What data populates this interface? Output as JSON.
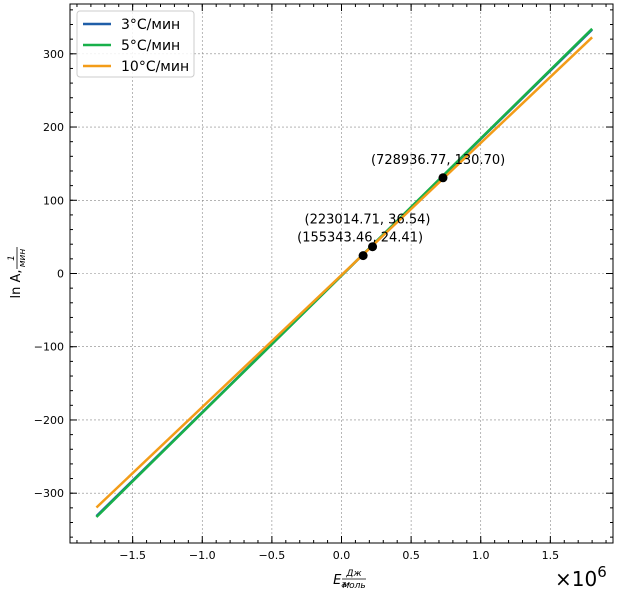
{
  "chart_data": {
    "type": "line",
    "title": "",
    "x_offset_text": "×10",
    "x_offset_exponent": "6",
    "xlabel": {
      "symbol": "E",
      "subscript": "a",
      "separator": ",",
      "unit_num": "Дж",
      "unit_den": "моль"
    },
    "ylabel": {
      "symbol": "ln A",
      "separator": ",",
      "unit_num": "1",
      "unit_den": "мин"
    },
    "xlim": [
      -1.95,
      1.95
    ],
    "ylim": [
      -368,
      368
    ],
    "x_scale": 1000000,
    "x_ticks": [
      -1.5,
      -1.0,
      -0.5,
      0.0,
      0.5,
      1.0,
      1.5
    ],
    "x_tick_labels": [
      "−1.5",
      "−1.0",
      "−0.5",
      "0.0",
      "0.5",
      "1.0",
      "1.5"
    ],
    "y_ticks": [
      -300,
      -200,
      -100,
      0,
      100,
      200,
      300
    ],
    "y_tick_labels": [
      "−300",
      "−200",
      "−100",
      "0",
      "100",
      "200",
      "300"
    ],
    "grid": true,
    "legend_position": "top-left",
    "series": [
      {
        "name": "3°C/мин",
        "color": "#1f5ea8",
        "x": [
          -1.76,
          1.8
        ],
        "y": [
          -331.3,
          333.0
        ]
      },
      {
        "name": "5°C/мин",
        "color": "#18b04a",
        "x": [
          -1.76,
          1.8
        ],
        "y": [
          -332.5,
          334.2
        ]
      },
      {
        "name": "10°C/мин",
        "color": "#f39c18",
        "x": [
          -1.76,
          1.8
        ],
        "y": [
          -319.5,
          322.5
        ]
      }
    ],
    "points": [
      {
        "x": 0.72893677,
        "y": 130.7,
        "label": "(728936.77, 130.70)"
      },
      {
        "x": 0.22301471,
        "y": 36.54,
        "label": "(223014.71, 36.54)"
      },
      {
        "x": 0.15534346,
        "y": 24.41,
        "label": "(155343.46, 24.41)"
      }
    ]
  }
}
